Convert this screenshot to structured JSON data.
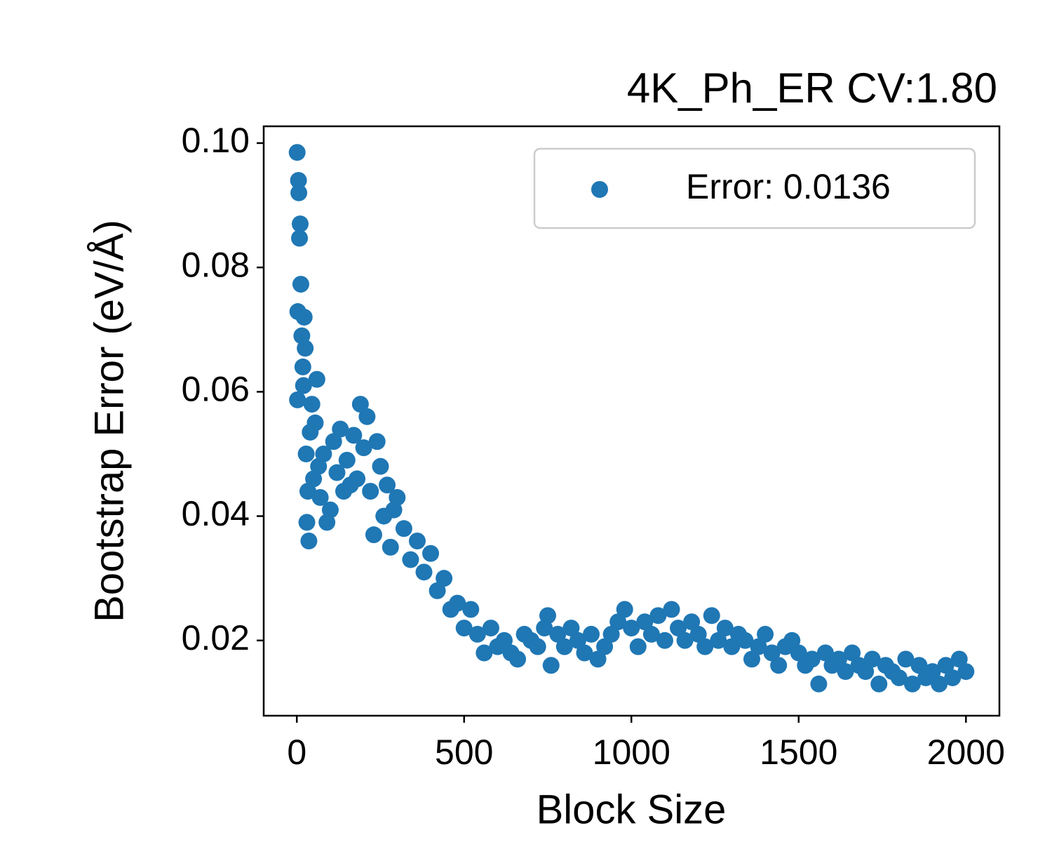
{
  "chart_data": {
    "type": "scatter",
    "title": "4K_Ph_ER CV:1.80",
    "x_label": "Block Size",
    "y_label": "Bootstrap Error (eV/Å)",
    "xlim": [
      -99,
      2100
    ],
    "ylim": [
      0.0079,
      0.1027
    ],
    "xticks": [
      0,
      500,
      1000,
      1500,
      2000
    ],
    "yticks": [
      {
        "value": 0.02,
        "label": "0.02"
      },
      {
        "value": 0.04,
        "label": "0.04"
      },
      {
        "value": 0.06,
        "label": "0.06"
      },
      {
        "value": 0.08,
        "label": "0.08"
      },
      {
        "value": 0.1,
        "label": "0.10"
      }
    ],
    "legend": "upper right",
    "series": [
      {
        "name": "Error: 0.0136",
        "color": "#1f77b4",
        "x": [
          1,
          2,
          3,
          5,
          6,
          8,
          10,
          12,
          15,
          18,
          20,
          22,
          25,
          28,
          30,
          33,
          36,
          40,
          45,
          50,
          55,
          60,
          65,
          70,
          80,
          90,
          100,
          110,
          120,
          130,
          140,
          150,
          160,
          170,
          180,
          190,
          200,
          210,
          220,
          230,
          240,
          250,
          260,
          270,
          280,
          290,
          300,
          320,
          340,
          360,
          380,
          400,
          420,
          440,
          460,
          480,
          500,
          520,
          540,
          560,
          580,
          600,
          620,
          640,
          660,
          680,
          700,
          720,
          740,
          750,
          760,
          780,
          800,
          820,
          840,
          860,
          880,
          900,
          920,
          940,
          960,
          980,
          1000,
          1020,
          1040,
          1060,
          1080,
          1100,
          1120,
          1140,
          1160,
          1180,
          1200,
          1220,
          1240,
          1260,
          1280,
          1300,
          1320,
          1340,
          1360,
          1380,
          1400,
          1420,
          1440,
          1460,
          1480,
          1500,
          1520,
          1540,
          1560,
          1580,
          1600,
          1620,
          1640,
          1660,
          1680,
          1700,
          1720,
          1740,
          1760,
          1780,
          1800,
          1820,
          1840,
          1860,
          1880,
          1900,
          1920,
          1940,
          1960,
          1980,
          2000
        ],
        "values": [
          0.0985,
          0.0587,
          0.0729,
          0.094,
          0.092,
          0.0847,
          0.087,
          0.0773,
          0.069,
          0.064,
          0.061,
          0.072,
          0.067,
          0.05,
          0.039,
          0.044,
          0.036,
          0.0535,
          0.058,
          0.046,
          0.055,
          0.062,
          0.048,
          0.043,
          0.05,
          0.039,
          0.041,
          0.052,
          0.047,
          0.054,
          0.044,
          0.049,
          0.045,
          0.053,
          0.046,
          0.058,
          0.051,
          0.056,
          0.044,
          0.037,
          0.052,
          0.048,
          0.04,
          0.045,
          0.035,
          0.041,
          0.043,
          0.038,
          0.033,
          0.036,
          0.031,
          0.034,
          0.028,
          0.03,
          0.025,
          0.026,
          0.022,
          0.025,
          0.021,
          0.018,
          0.022,
          0.019,
          0.02,
          0.018,
          0.017,
          0.021,
          0.02,
          0.019,
          0.022,
          0.024,
          0.016,
          0.021,
          0.019,
          0.022,
          0.02,
          0.018,
          0.021,
          0.017,
          0.019,
          0.021,
          0.023,
          0.025,
          0.022,
          0.019,
          0.023,
          0.021,
          0.024,
          0.02,
          0.025,
          0.022,
          0.02,
          0.023,
          0.021,
          0.019,
          0.024,
          0.02,
          0.022,
          0.019,
          0.021,
          0.02,
          0.017,
          0.019,
          0.021,
          0.018,
          0.016,
          0.019,
          0.02,
          0.018,
          0.016,
          0.017,
          0.013,
          0.018,
          0.016,
          0.017,
          0.015,
          0.018,
          0.016,
          0.015,
          0.017,
          0.013,
          0.016,
          0.015,
          0.014,
          0.017,
          0.013,
          0.016,
          0.014,
          0.015,
          0.013,
          0.016,
          0.014,
          0.017,
          0.015
        ]
      }
    ]
  }
}
